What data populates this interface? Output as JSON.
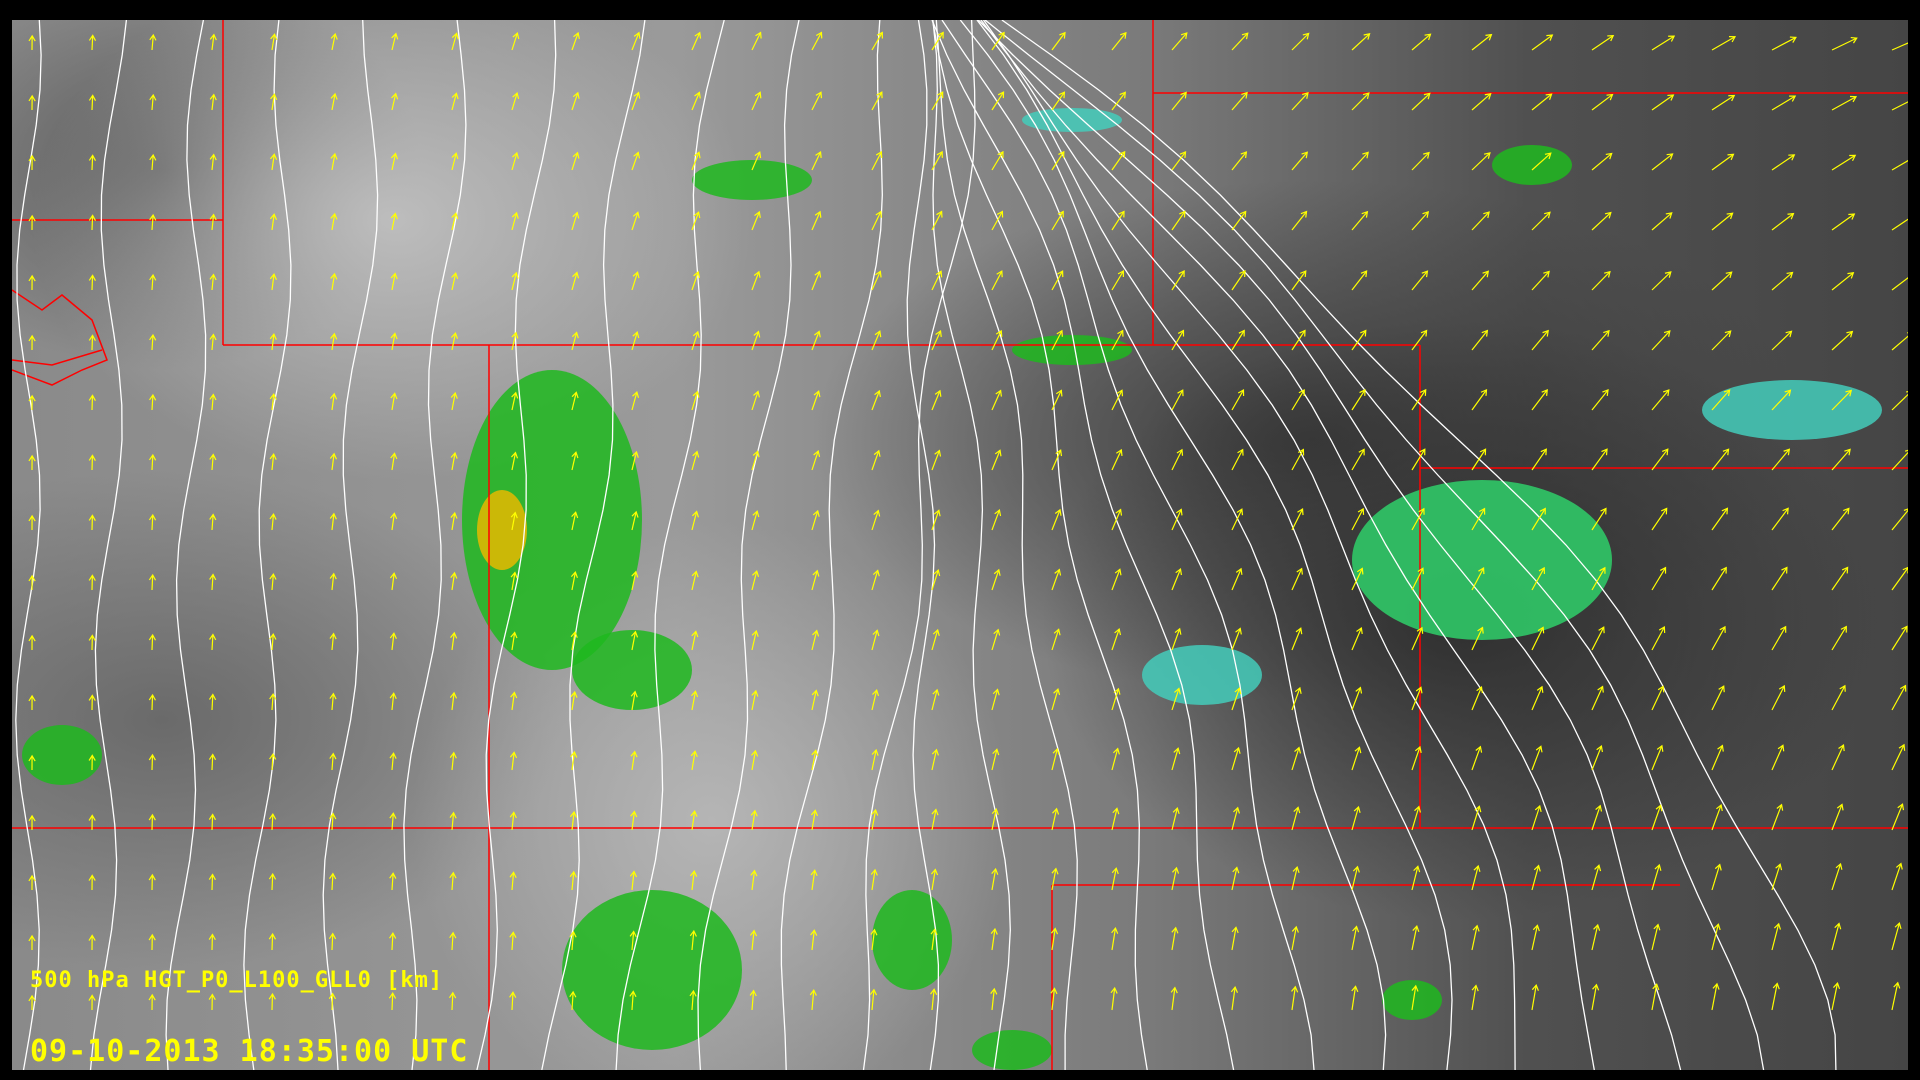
{
  "overlay": {
    "field_label": "500 hPa HGT_P0_L100_GLL0 [km]",
    "timestamp": "09-10-2013 18:35:00 UTC"
  },
  "colors": {
    "wind_vectors": "#ffff00",
    "contours": "#ffffff",
    "boundaries": "#ff0000",
    "radar_light": "#22cc22",
    "radar_cyan": "#44ddcc",
    "radar_heavy": "#ffcc00"
  },
  "layers": [
    "satellite-ir-grayscale",
    "radar-reflectivity",
    "500hPa-height-contours",
    "wind-vectors",
    "state-boundaries"
  ]
}
